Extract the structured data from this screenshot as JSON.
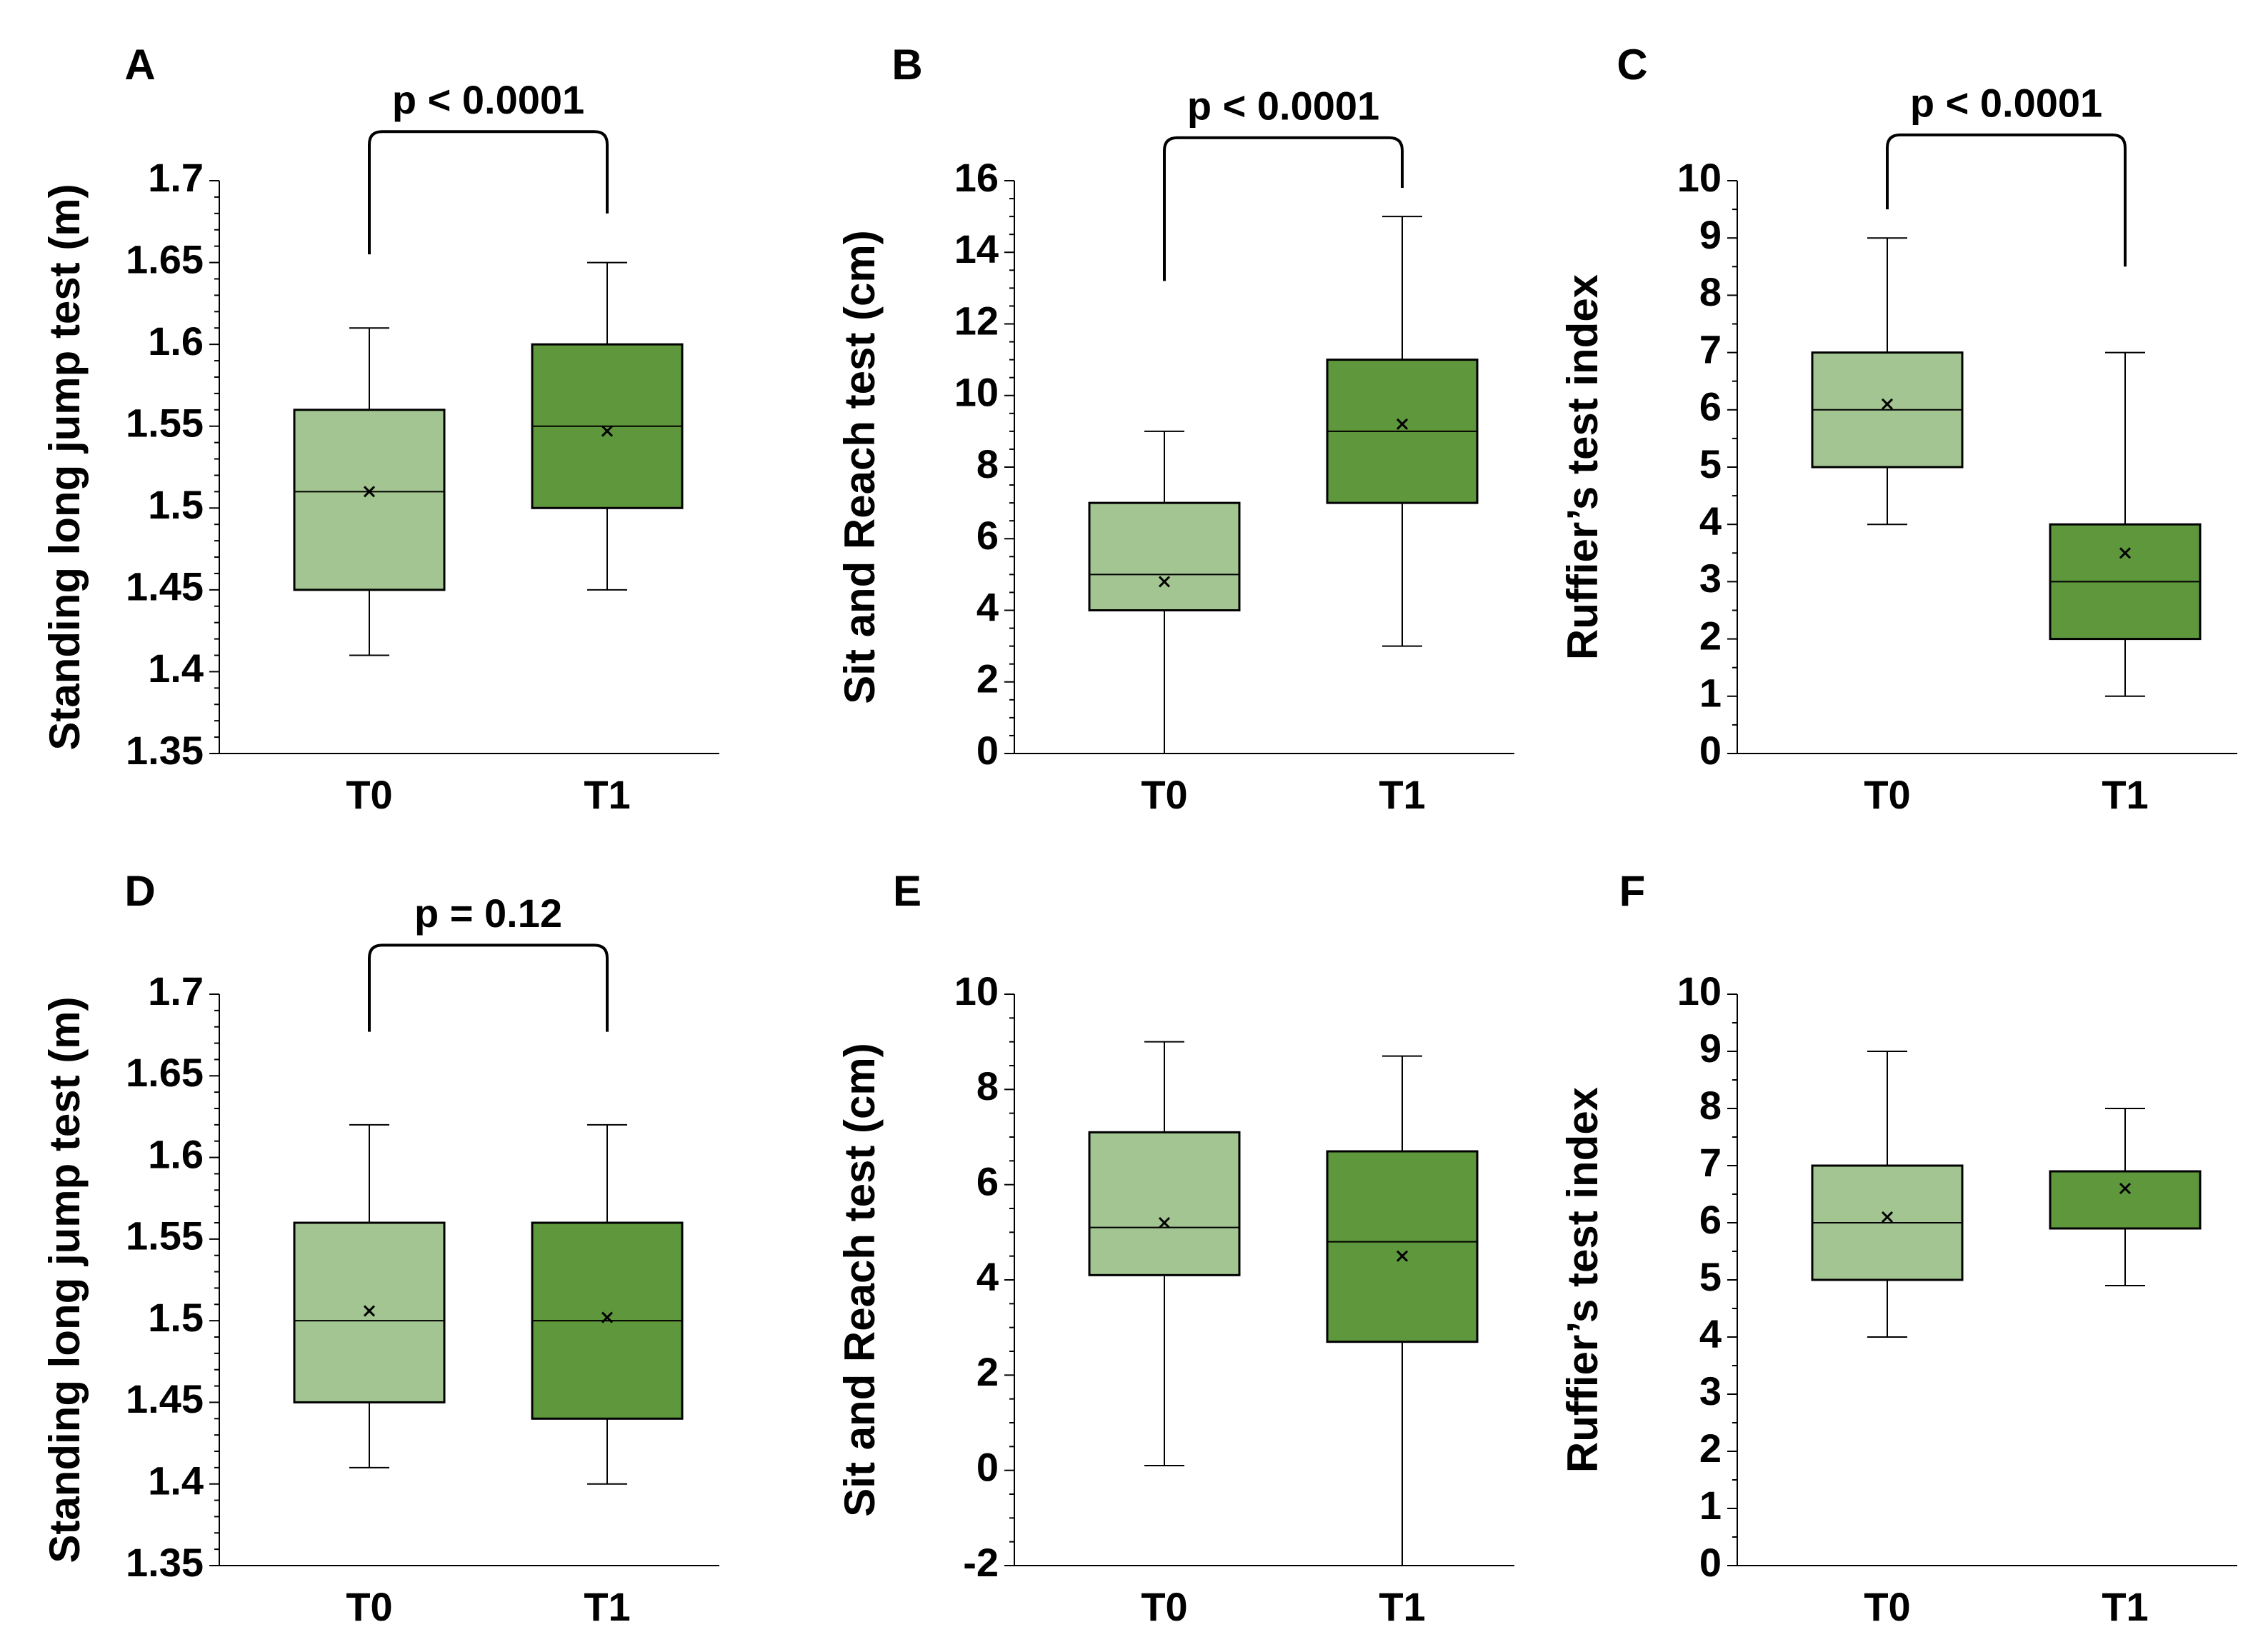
{
  "colors": {
    "T0": "#a3c591",
    "T1": "#5e973c",
    "line": "#000000"
  },
  "chart_data": [
    {
      "panel": "A",
      "type": "box",
      "ylabel": "Standing long jump test (m)",
      "ylim": [
        1.35,
        1.7
      ],
      "y_step": 0.05,
      "minor_divisions": 5,
      "ticks": [
        "1.35",
        "1.4",
        "1.45",
        "1.5",
        "1.55",
        "1.6",
        "1.65",
        "1.7"
      ],
      "categories": [
        "T0",
        "T1"
      ],
      "boxes": [
        {
          "label": "T0",
          "min": 1.41,
          "q1": 1.45,
          "median": 1.51,
          "q3": 1.56,
          "max": 1.61,
          "mean": 1.51
        },
        {
          "label": "T1",
          "min": 1.45,
          "q1": 1.5,
          "median": 1.55,
          "q3": 1.6,
          "max": 1.65,
          "mean": 1.547
        }
      ],
      "bracket": {
        "label": "p < 0.0001",
        "left_y": 1.655,
        "right_y": 1.68,
        "top_y": 1.73
      }
    },
    {
      "panel": "B",
      "type": "box",
      "ylabel": "Sit and Reach test (cm)",
      "ylim": [
        0,
        16
      ],
      "y_step": 2,
      "minor_divisions": 4,
      "ticks": [
        "0",
        "2",
        "4",
        "6",
        "8",
        "10",
        "12",
        "14",
        "16"
      ],
      "categories": [
        "T0",
        "T1"
      ],
      "boxes": [
        {
          "label": "T0",
          "min": 0,
          "q1": 4,
          "median": 5,
          "q3": 7,
          "max": 9,
          "mean": 4.8
        },
        {
          "label": "T1",
          "min": 3,
          "q1": 7,
          "median": 9,
          "q3": 11,
          "max": 15,
          "mean": 9.2
        }
      ],
      "bracket": {
        "label": "p < 0.0001",
        "left_y": 13.2,
        "right_y": 15.8,
        "top_y": 17.2
      }
    },
    {
      "panel": "C",
      "type": "box",
      "ylabel": "Ruffier’s test  index",
      "ylim": [
        0,
        10
      ],
      "y_step": 1,
      "minor_divisions": 2,
      "ticks": [
        "0",
        "1",
        "2",
        "3",
        "4",
        "5",
        "6",
        "7",
        "8",
        "9",
        "10"
      ],
      "categories": [
        "T0",
        "T1"
      ],
      "boxes": [
        {
          "label": "T0",
          "min": 4,
          "q1": 5,
          "median": 6,
          "q3": 7,
          "max": 9,
          "mean": 6.1
        },
        {
          "label": "T1",
          "min": 1,
          "q1": 2,
          "median": 3,
          "q3": 4,
          "max": 7,
          "mean": 3.5
        }
      ],
      "bracket": {
        "label": "p < 0.0001",
        "left_y": 9.5,
        "right_y": 8.5,
        "top_y": 10.8
      }
    },
    {
      "panel": "D",
      "type": "box",
      "ylabel": "Standing long jump test (m)",
      "ylim": [
        1.35,
        1.7
      ],
      "y_step": 0.05,
      "minor_divisions": 5,
      "ticks": [
        "1.35",
        "1.4",
        "1.45",
        "1.5",
        "1.55",
        "1.6",
        "1.65",
        "1.7"
      ],
      "categories": [
        "T0",
        "T1"
      ],
      "boxes": [
        {
          "label": "T0",
          "min": 1.41,
          "q1": 1.45,
          "median": 1.5,
          "q3": 1.56,
          "max": 1.62,
          "mean": 1.506
        },
        {
          "label": "T1",
          "min": 1.4,
          "q1": 1.44,
          "median": 1.5,
          "q3": 1.56,
          "max": 1.62,
          "mean": 1.502
        }
      ],
      "bracket": {
        "label": "p = 0.12",
        "left_y": 1.677,
        "right_y": 1.677,
        "top_y": 1.73
      }
    },
    {
      "panel": "E",
      "type": "box",
      "ylabel": "Sit and Reach test (cm)",
      "ylim": [
        -2,
        10
      ],
      "y_step": 2,
      "minor_divisions": 4,
      "ticks": [
        "-2",
        "0",
        "2",
        "4",
        "6",
        "8",
        "10"
      ],
      "categories": [
        "T0",
        "T1"
      ],
      "boxes": [
        {
          "label": "T0",
          "min": 0.1,
          "q1": 4.1,
          "median": 5.1,
          "q3": 7.1,
          "max": 9.0,
          "mean": 5.2
        },
        {
          "label": "T1",
          "min": -2,
          "q1": 2.7,
          "median": 4.8,
          "q3": 6.7,
          "max": 8.7,
          "mean": 4.5
        }
      ],
      "bracket": null
    },
    {
      "panel": "F",
      "type": "box",
      "ylabel": "Ruffier’s test  index",
      "ylim": [
        0,
        10
      ],
      "y_step": 1,
      "minor_divisions": 2,
      "ticks": [
        "0",
        "1",
        "2",
        "3",
        "4",
        "5",
        "6",
        "7",
        "8",
        "9",
        "10"
      ],
      "categories": [
        "T0",
        "T1"
      ],
      "boxes": [
        {
          "label": "T0",
          "min": 4,
          "q1": 5,
          "median": 6,
          "q3": 7,
          "max": 9,
          "mean": 6.1
        },
        {
          "label": "T1",
          "min": 4.9,
          "q1": 5.9,
          "median": 5.9,
          "q3": 6.9,
          "max": 8,
          "mean": 6.6
        }
      ],
      "bracket": null
    }
  ]
}
